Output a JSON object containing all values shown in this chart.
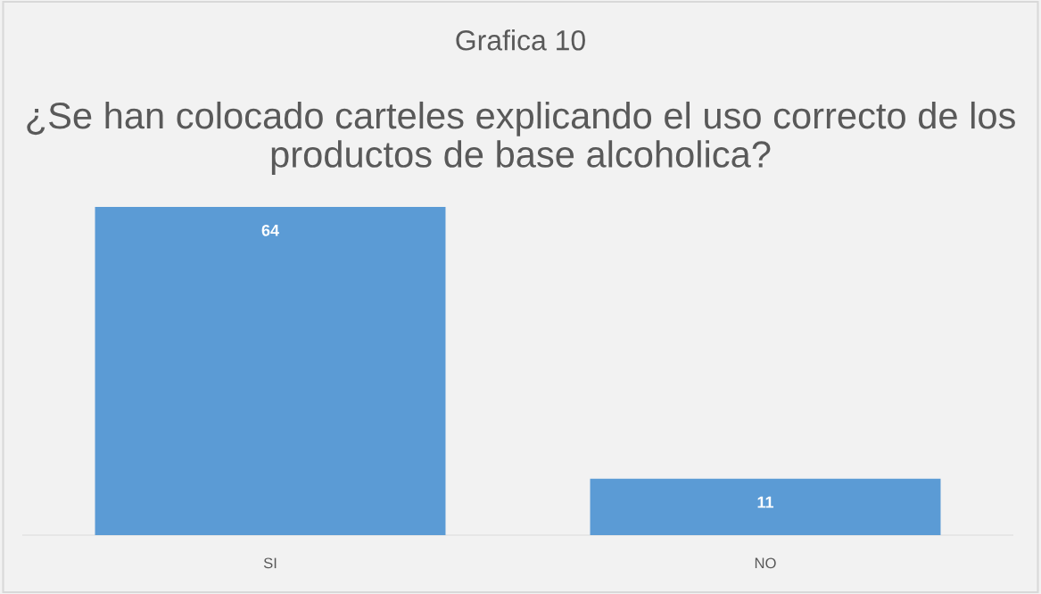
{
  "chart_data": {
    "type": "bar",
    "title": "Grafica 10",
    "subtitle": "¿Se han colocado carteles explicando el uso correcto de los productos de base alcoholica?",
    "categories": [
      "SI",
      "NO"
    ],
    "values": [
      64,
      11
    ],
    "color": "#5b9bd5",
    "data_labels": true
  }
}
